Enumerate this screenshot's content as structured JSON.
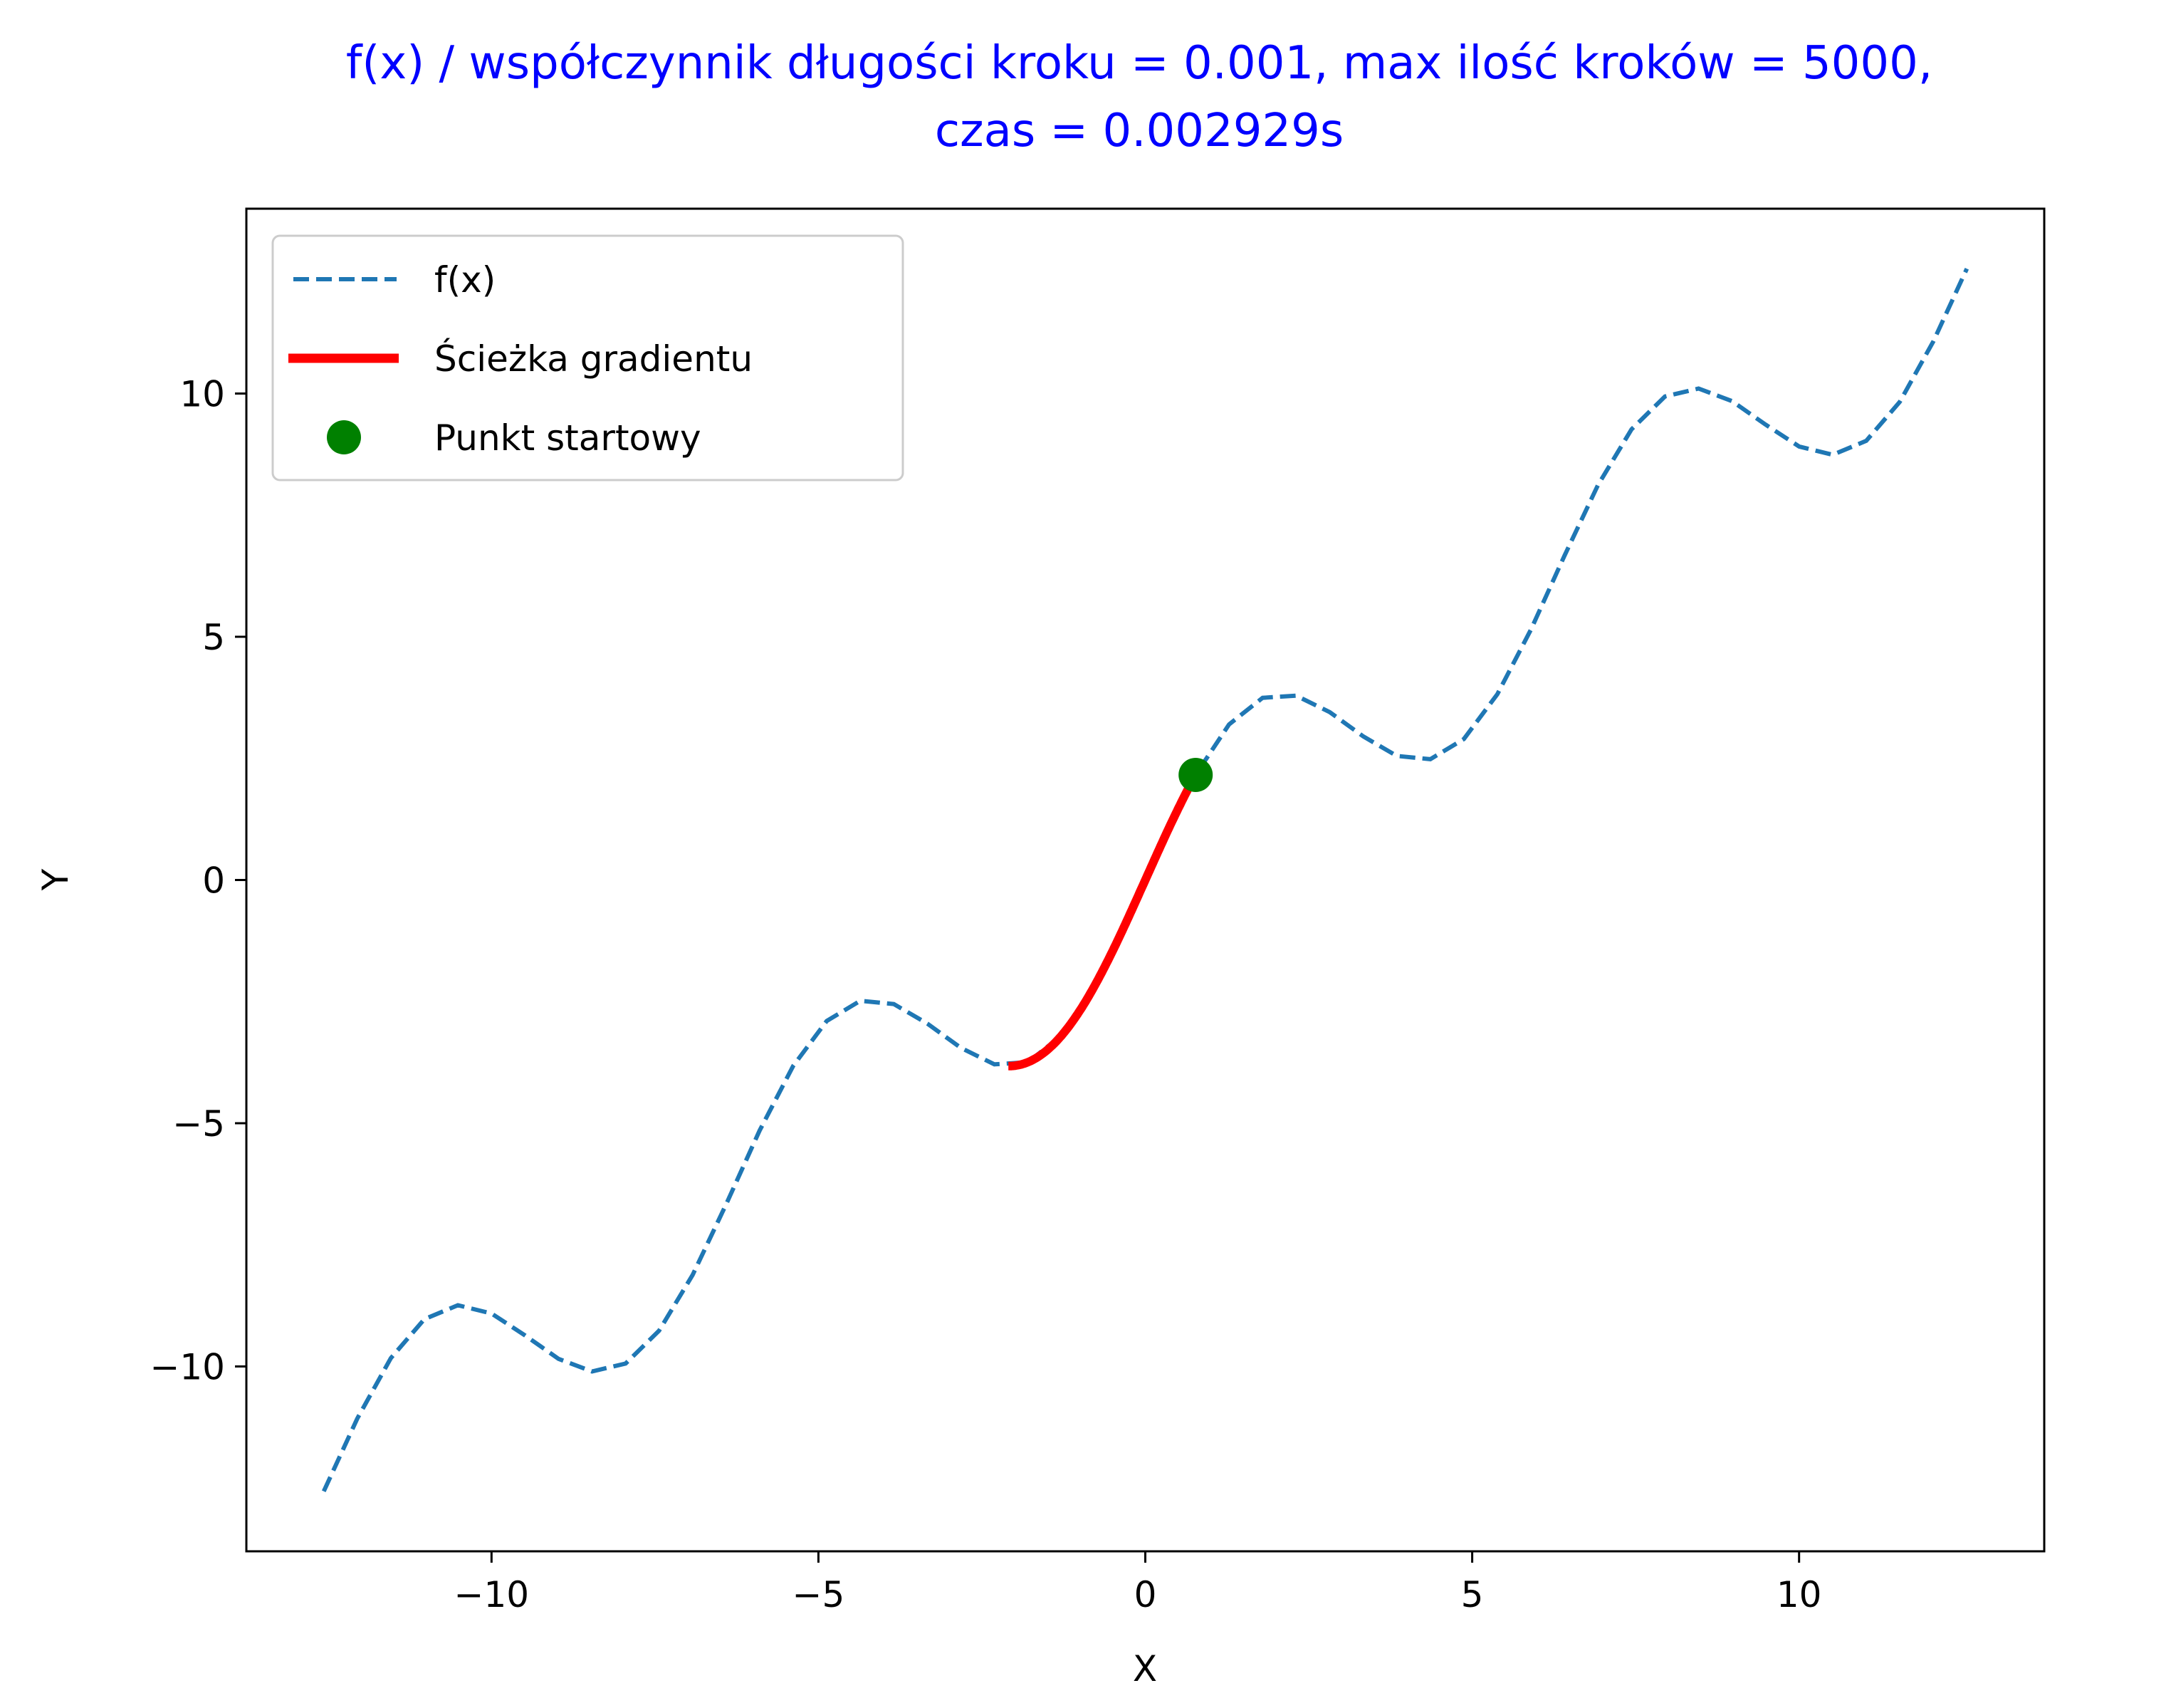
{
  "chart_data": {
    "type": "line",
    "title_lines": [
      "f(x) / współczynnik długości kroku = 0.001, max ilość kroków = 5000,",
      "czas = 0.002929s"
    ],
    "xlabel": "X",
    "ylabel": "Y",
    "xlim": [
      -13.75,
      13.75
    ],
    "ylim": [
      -13.8,
      13.8
    ],
    "xticks": [
      -10,
      -5,
      0,
      5,
      10
    ],
    "xtick_labels": [
      "−10",
      "−5",
      "0",
      "5",
      "10"
    ],
    "yticks": [
      -10,
      -5,
      0,
      5,
      10
    ],
    "ytick_labels": [
      "−10",
      "−5",
      "0",
      "5",
      "10"
    ],
    "grid": false,
    "legend_position": "upper-left",
    "series": [
      {
        "name": "f(x)",
        "style": "dashed",
        "color": "#1f77b4",
        "function": "x + 2*sin(x)",
        "x_range": [
          -12.566,
          12.566
        ],
        "samples": 50
      },
      {
        "name": "Ścieżka gradientu",
        "style": "solid",
        "color": "#ff0000",
        "function": "x + 2*sin(x)",
        "x_range": [
          -2.094,
          0.85
        ]
      },
      {
        "name": "Punkt startowy",
        "style": "marker",
        "color": "#008000",
        "points": [
          [
            0.77,
            2.16
          ]
        ]
      }
    ],
    "legend": [
      {
        "label": "f(x)",
        "kind": "dashed-line",
        "color": "#1f77b4"
      },
      {
        "label": "Ścieżka gradientu",
        "kind": "solid-line",
        "color": "#ff0000"
      },
      {
        "label": "Punkt startowy",
        "kind": "marker",
        "color": "#008000"
      }
    ]
  }
}
